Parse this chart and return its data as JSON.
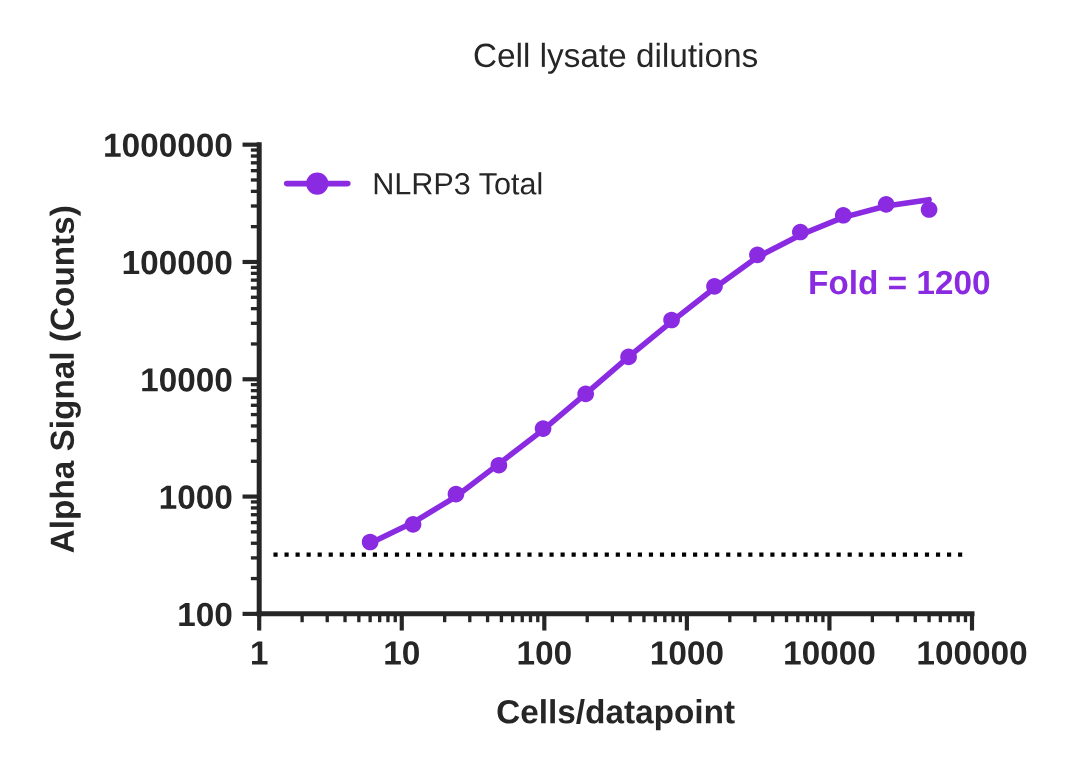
{
  "chart_data": {
    "type": "scatter",
    "title": "Cell lysate dilutions",
    "xlabel": "Cells/datapoint",
    "ylabel": "Alpha Signal (Counts)",
    "log": "xy",
    "xlim": [
      1,
      100000
    ],
    "xticks": [
      1,
      10,
      100,
      1000,
      10000,
      100000
    ],
    "ylim": [
      100,
      1000000
    ],
    "yticks": [
      100,
      1000,
      10000,
      100000,
      1000000
    ],
    "series": [
      {
        "name": "NLRP3 Total",
        "color": "#8a2be2",
        "marker": "circle",
        "x": [
          6,
          12,
          24,
          48,
          98,
          195,
          390,
          781,
          1562,
          3125,
          6250,
          12500,
          25000,
          50000
        ],
        "values": [
          410,
          580,
          1050,
          1850,
          3800,
          7500,
          15500,
          32000,
          62000,
          115000,
          180000,
          250000,
          310000,
          280000
        ]
      },
      {
        "type": "line",
        "color": "#8a2be2",
        "line_style": "solid",
        "x": [
          6,
          12,
          24,
          48,
          98,
          195,
          390,
          781,
          1562,
          3125,
          6250,
          12500,
          25000,
          50000
        ],
        "values": [
          400,
          600,
          1000,
          1900,
          3700,
          7500,
          15500,
          31000,
          60000,
          110000,
          170000,
          240000,
          300000,
          340000
        ]
      }
    ],
    "ref_lines": [
      {
        "axis": "y",
        "value": 320,
        "color": "#000000",
        "line_style": "dotted"
      }
    ],
    "annotations": [
      "Fold = 1200"
    ],
    "legend": "top left",
    "grid": false
  }
}
